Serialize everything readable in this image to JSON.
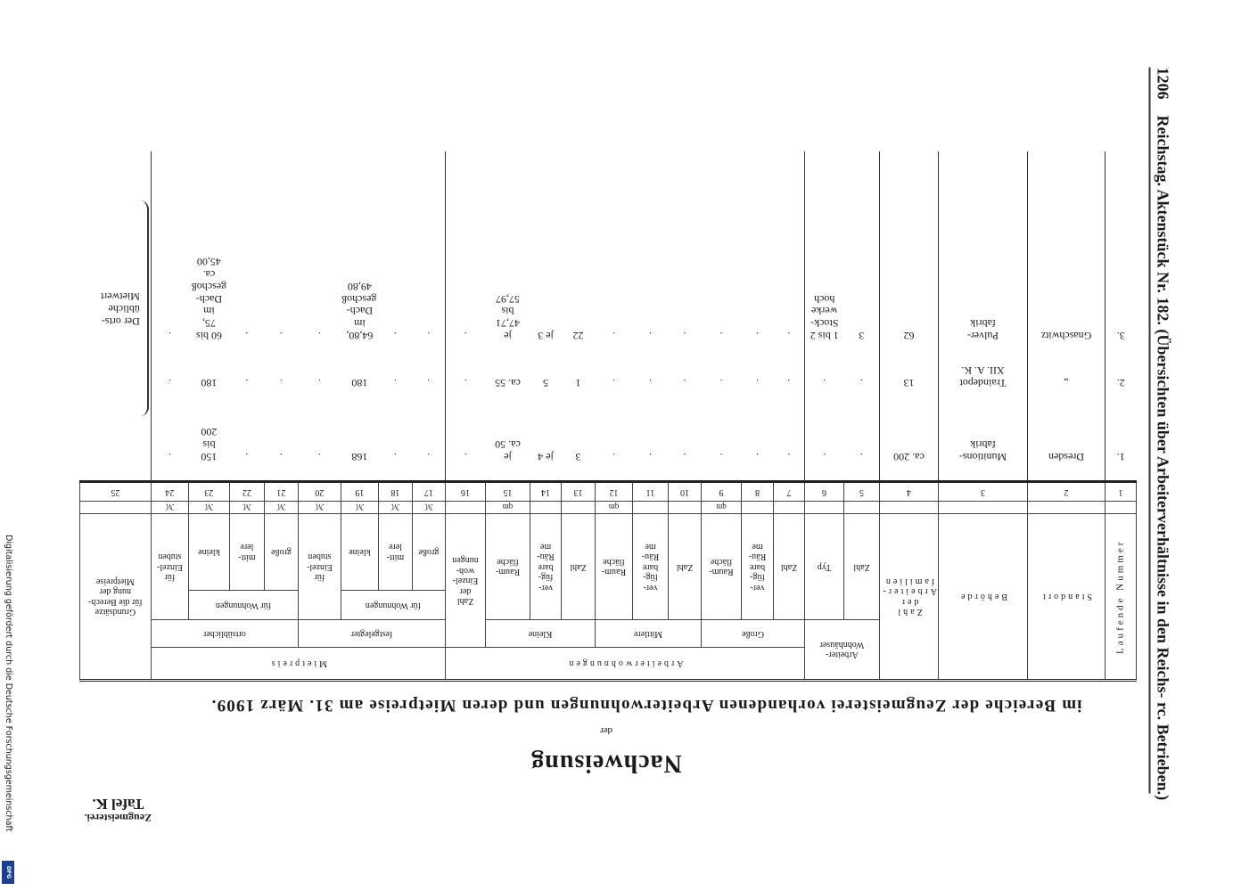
{
  "header": {
    "page_number": "1206",
    "running_title": "Reichstag. Aktenstück Nr. 182. (Übersichten über Arbeiterverhältnisse in den Reichs- rc. Betrieben.)"
  },
  "side_note": "Digitalisierung gefördert durch die Deutsche Forschungsgemeinschaft",
  "logo": "DFG",
  "document": {
    "office": "Zeugmeisterei.",
    "plate": "Tafel K.",
    "title": "Nachweisung",
    "connector": "der",
    "subtitle": "im Bereiche der Zeugmeisterei vorhandenen Arbeiterwohnungen und deren Mietpreise am 31. März 1909."
  },
  "table": {
    "head": {
      "number": "Laufende Nummer",
      "location": "Standort",
      "authority": "Behörde",
      "families": "Zahl\nder\nArbeiter-\nfamilien",
      "houses": {
        "title": "Arbeiter-\nWohnhäuser",
        "count": "Zahl",
        "type": "Typ"
      },
      "dwellings": {
        "title": "Arbeiterwohnungen",
        "large": {
          "title": "Große",
          "count": "Zahl",
          "rooms": "ver-\nfüg-\nbare\nRäu-\nme",
          "area": "Raum-\nfläche"
        },
        "medium": {
          "title": "Mittlere",
          "count": "Zahl",
          "rooms": "ver-\nfüg-\nbare\nRäu-\nme",
          "area": "Raum-\nfläche"
        },
        "small": {
          "title": "Kleine",
          "count": "Zahl",
          "rooms": "ver-\nfüg-\nbare\nRäu-\nme",
          "area": "Raum-\nfläche"
        },
        "single": "Zahl\nder\nEinzel-\nwoh-\nnungen"
      },
      "rent": {
        "title": "Mietpreis",
        "fixed": {
          "title": "festgelegter",
          "dwellings": "für Wohnungen",
          "large": "große",
          "medium": "mitt-\nlere",
          "small": "kleine",
          "rooms": "für\nEinzel-\nstuben"
        },
        "local": {
          "title": "ortsüblicher",
          "dwellings": "für Wohnungen",
          "large": "große",
          "medium": "mitt-\nlere",
          "small": "kleine",
          "rooms": "für\nEinzel-\nstuben"
        }
      },
      "basis": "Grundsätze\nfür die Berech-\nnung der\nMietpreise"
    },
    "area_unit": "qm",
    "currency_unit": "ℳ",
    "column_numbers": [
      1,
      2,
      3,
      4,
      5,
      6,
      7,
      8,
      9,
      10,
      11,
      12,
      13,
      14,
      15,
      16,
      17,
      18,
      19,
      20,
      21,
      22,
      23,
      24,
      25
    ],
    "rows": [
      [
        "1.",
        "Dresden",
        "Munitions-\nfabrik",
        "ca. 200",
        ".",
        ".",
        ".",
        ".",
        ".",
        ".",
        ".",
        ".",
        "3",
        "je 4",
        "je\nca. 50",
        ".",
        ".",
        ".",
        "168",
        ".",
        ".",
        ".",
        "150\nbis\n200",
        "."
      ],
      [
        "2.",
        "„",
        "Traindepot\nXII. A. K.",
        "13",
        ".",
        ".",
        ".",
        ".",
        ".",
        ".",
        ".",
        ".",
        "1",
        "5",
        "ca. 55",
        ".",
        ".",
        ".",
        "180",
        ".",
        ".",
        ".",
        "180",
        "."
      ],
      [
        "3.",
        "Gnaschwitz",
        "Pulver-\nfabrik",
        "62",
        "3",
        "1 bis 2\nStock-\nwerke\nhoch",
        ".",
        ".",
        ".",
        ".",
        ".",
        ".",
        "22",
        "je 3",
        "je\n47,71\nbis\n57,97",
        ".",
        ".",
        ".",
        "64,80,\nim\nDach-\ngeschoß\n49,80",
        ".",
        ".",
        ".",
        "60 bis\n75,\nim\nDach-\ngeschoß\nca.\n45,00",
        "."
      ]
    ],
    "basis_note": "Der orts-\nübliche\nMietwert"
  }
}
